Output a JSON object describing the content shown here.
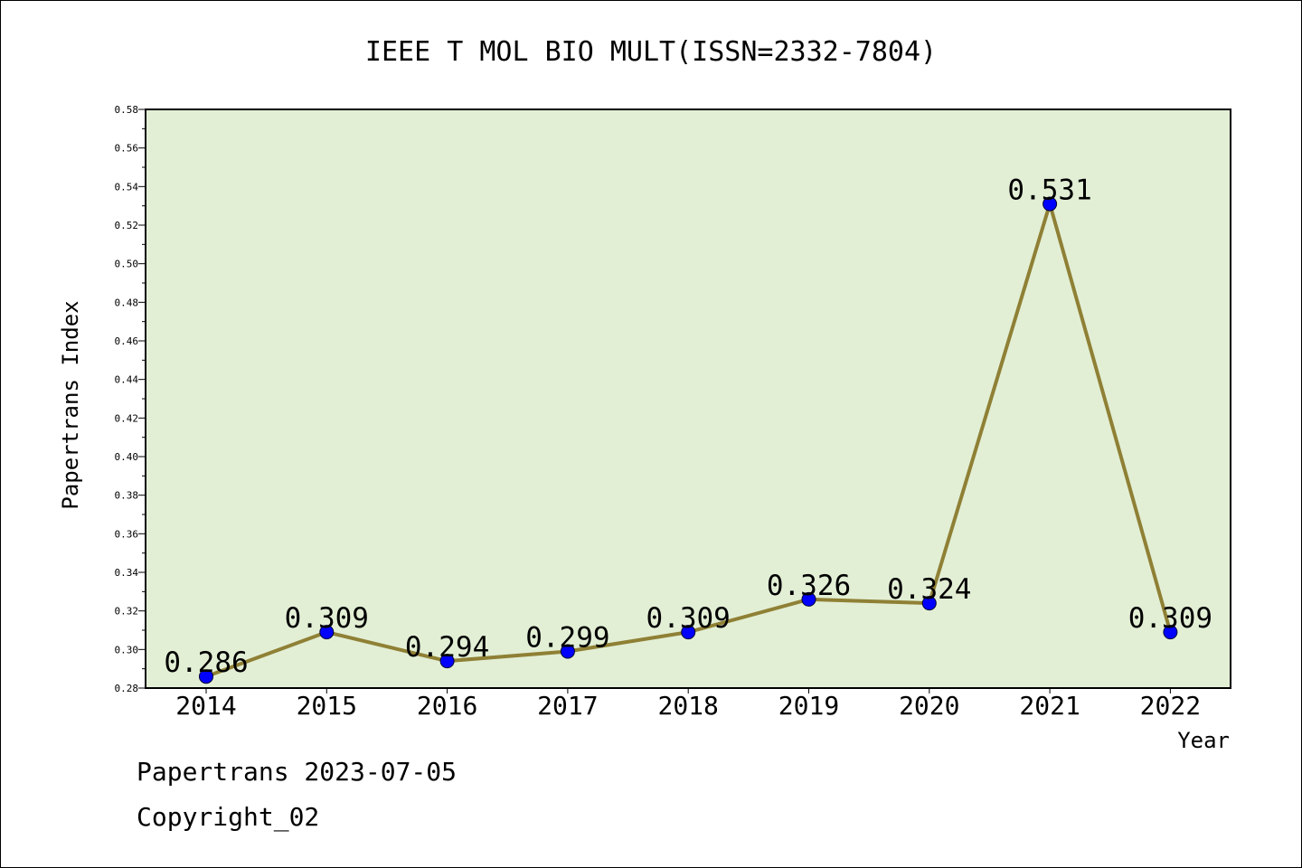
{
  "chart_data": {
    "type": "line",
    "title": "IEEE T MOL BIO MULT(ISSN=2332-7804)",
    "xlabel": "Year",
    "ylabel": "Papertrans Index",
    "categories": [
      "2014",
      "2015",
      "2016",
      "2017",
      "2018",
      "2019",
      "2020",
      "2021",
      "2022"
    ],
    "values": [
      0.286,
      0.309,
      0.294,
      0.299,
      0.309,
      0.326,
      0.324,
      0.531,
      0.309
    ],
    "data_labels": [
      "0.286",
      "0.309",
      "0.294",
      "0.299",
      "0.309",
      "0.326",
      "0.324",
      "0.531",
      "0.309"
    ],
    "ylim": [
      0.28,
      0.58
    ],
    "yticks": [
      "0.28",
      "0.30",
      "0.32",
      "0.34",
      "0.36",
      "0.38",
      "0.40",
      "0.42",
      "0.44",
      "0.46",
      "0.48",
      "0.50",
      "0.52",
      "0.54",
      "0.56",
      "0.58"
    ],
    "grid": false,
    "legend": "none",
    "colors": {
      "plot_background": "#e2efd5",
      "line": "#8f8035",
      "marker": "#0000ff"
    }
  },
  "footer": {
    "source": "Papertrans 2023-07-05",
    "copyright": "Copyright_02"
  }
}
